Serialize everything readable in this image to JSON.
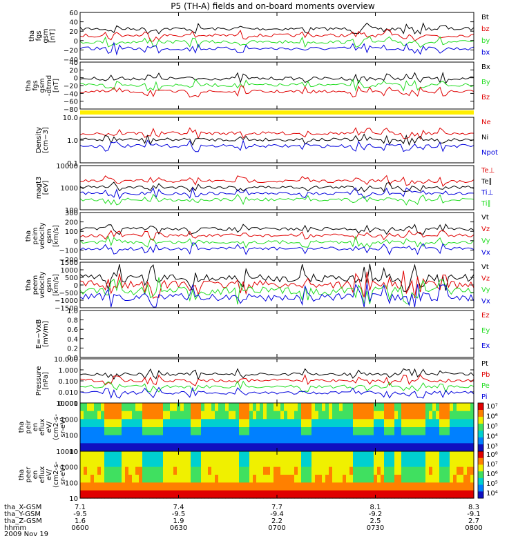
{
  "chart_data": {
    "type": "line",
    "title": "P5 (TH-A) fields and on-board moments overview",
    "date": "2009 Nov 19",
    "time_range": [
      "0600",
      "0800"
    ],
    "x_ticks": [
      "0600",
      "0630",
      "0700",
      "0730",
      "0800"
    ],
    "ephemeris": {
      "rows": [
        {
          "label": "tha_X-GSM",
          "values": [
            "7.1",
            "7.4",
            "7.7",
            "8.1",
            "8.3"
          ]
        },
        {
          "label": "tha_Y-GSM",
          "values": [
            "-9.5",
            "-9.5",
            "-9.4",
            "-9.2",
            "-9.1"
          ]
        },
        {
          "label": "tha_Z-GSM",
          "values": [
            "1.6",
            "1.9",
            "2.2",
            "2.5",
            "2.7"
          ]
        },
        {
          "label": "hhmm",
          "values": []
        }
      ]
    },
    "panels": [
      {
        "id": "fgs_gsm",
        "ylabel": [
          "tha",
          "fgs",
          "gsm",
          "[nT]"
        ],
        "yticks": [
          "60",
          "40",
          "20",
          "0",
          "−20",
          "−40"
        ],
        "ylim": [
          -45,
          60
        ],
        "series": [
          {
            "name": "Bt",
            "color": "#000000"
          },
          {
            "name": "bz",
            "color": "#e00000"
          },
          {
            "name": "by",
            "color": "#22dd22"
          },
          {
            "name": "bx",
            "color": "#0000dd"
          }
        ]
      },
      {
        "id": "fgs_gsm_dtrend",
        "ylabel": [
          "tha",
          "fgs",
          "gsm",
          "-dtrnd",
          "[nT]"
        ],
        "yticks": [
          "40",
          "20",
          "0",
          "−20",
          "−40",
          "−60",
          "−80"
        ],
        "ylim": [
          -90,
          45
        ],
        "series": [
          {
            "name": "Bx",
            "color": "#000000"
          },
          {
            "name": "By",
            "color": "#22dd22"
          },
          {
            "name": "Bz",
            "color": "#e00000"
          }
        ]
      },
      {
        "id": "density",
        "ylabel": [
          "Density",
          "[cm−3]"
        ],
        "yticks": [
          "10.0",
          "1.0",
          "0.1"
        ],
        "ylim": [
          0.1,
          30
        ],
        "log": true,
        "series": [
          {
            "name": "Ne",
            "color": "#e00000"
          },
          {
            "name": "Ni",
            "color": "#000000"
          },
          {
            "name": "Npot",
            "color": "#0000dd"
          }
        ]
      },
      {
        "id": "temperature",
        "ylabel": [
          "magt3",
          "[eV]"
        ],
        "yticks": [
          "10000",
          "1000",
          "100"
        ],
        "ylim": [
          30,
          10000
        ],
        "log": true,
        "series": [
          {
            "name": "Te⊥",
            "color": "#e00000"
          },
          {
            "name": "Te∥",
            "color": "#000000"
          },
          {
            "name": "Ti⊥",
            "color": "#0000dd"
          },
          {
            "name": "Ti∥",
            "color": "#22dd22"
          }
        ]
      },
      {
        "id": "peim_velocity",
        "ylabel": [
          "tha",
          "peim",
          "velocity",
          "gsm",
          "[km/s]"
        ],
        "yticks": [
          "300",
          "200",
          "100",
          "0",
          "−100",
          "−200"
        ],
        "ylim": [
          -210,
          310
        ],
        "series": [
          {
            "name": "Vt",
            "color": "#000000"
          },
          {
            "name": "Vz",
            "color": "#e00000"
          },
          {
            "name": "Vy",
            "color": "#22dd22"
          },
          {
            "name": "Vx",
            "color": "#0000dd"
          }
        ]
      },
      {
        "id": "peem_velocity",
        "ylabel": [
          "tha",
          "peem",
          "velocity",
          "gsm",
          "[km/s]"
        ],
        "yticks": [
          "1500",
          "1000",
          "500",
          "0",
          "−500",
          "−1000",
          "−1500"
        ],
        "ylim": [
          -1550,
          1550
        ],
        "series": [
          {
            "name": "Vt",
            "color": "#000000"
          },
          {
            "name": "Vz",
            "color": "#e00000"
          },
          {
            "name": "Vy",
            "color": "#22dd22"
          },
          {
            "name": "Vx",
            "color": "#0000dd"
          }
        ]
      },
      {
        "id": "efield",
        "ylabel": [
          "E=−VxB",
          "[mV/m]"
        ],
        "yticks": [
          "1.0",
          "0.8",
          "0.6",
          "0.4",
          "0.2",
          "0.0"
        ],
        "ylim": [
          0,
          1
        ],
        "series": [
          {
            "name": "Ez",
            "color": "#e00000"
          },
          {
            "name": "Ey",
            "color": "#22dd22"
          },
          {
            "name": "Ex",
            "color": "#0000dd"
          }
        ]
      },
      {
        "id": "pressure",
        "ylabel": [
          "Pressure",
          "[nPa]"
        ],
        "yticks": [
          "10.000",
          "1.000",
          "0.100",
          "0.010",
          "0.001"
        ],
        "ylim": [
          0.001,
          10
        ],
        "log": true,
        "series": [
          {
            "name": "Pt",
            "color": "#000000"
          },
          {
            "name": "Pb",
            "color": "#e00000"
          },
          {
            "name": "Pe",
            "color": "#22dd22"
          },
          {
            "name": "Pi",
            "color": "#0000dd"
          }
        ]
      },
      {
        "id": "peir_eflux",
        "type": "heatmap",
        "ylabel": [
          "tha",
          "peir",
          "en",
          "eflux",
          "eV/",
          "(cm2-s-",
          "sr-eV)"
        ],
        "yticks": [
          "10000",
          "1000",
          "100",
          "10"
        ],
        "colorbar": [
          "10⁷",
          "10⁶",
          "10⁵",
          "10⁴",
          "10³"
        ]
      },
      {
        "id": "peer_eflux",
        "type": "heatmap",
        "ylabel": [
          "tha",
          "peer",
          "en",
          "eflux",
          "eV/",
          "(cm2-s-",
          "sr-eV)"
        ],
        "yticks": [
          "10000",
          "1000",
          "100",
          "10"
        ],
        "colorbar": [
          "10⁸",
          "10⁷",
          "10⁶",
          "10⁵",
          "10⁴"
        ]
      }
    ]
  }
}
